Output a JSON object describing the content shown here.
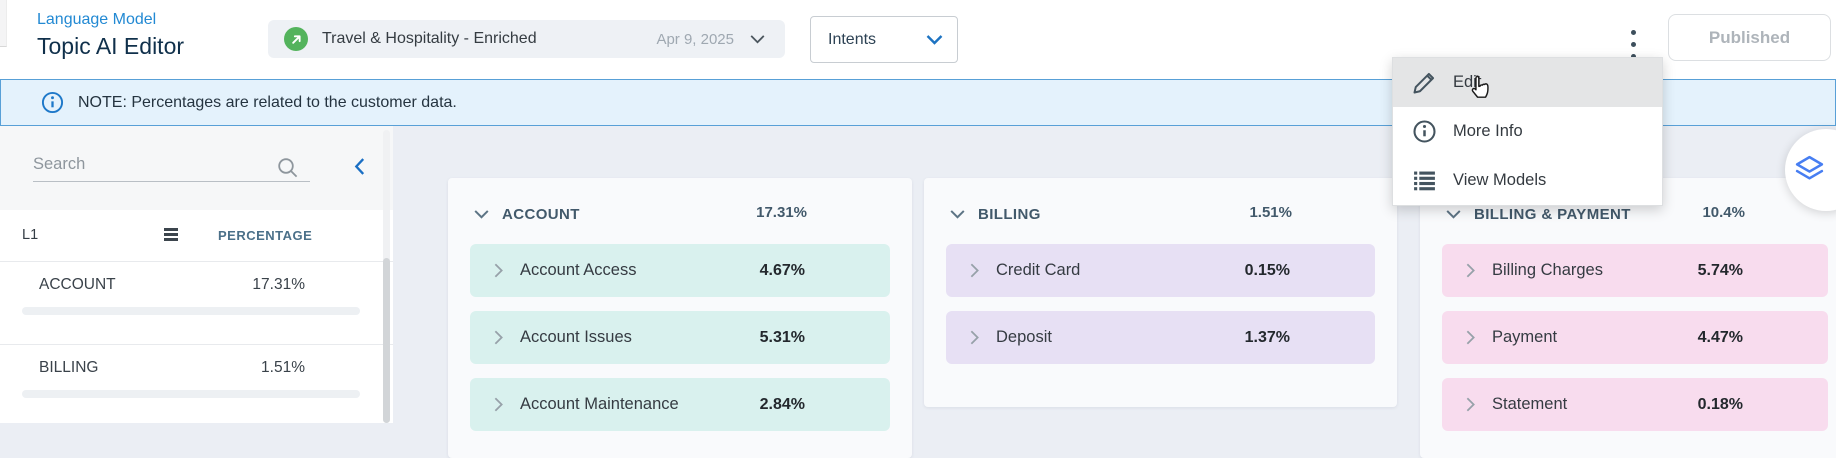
{
  "header": {
    "breadcrumb": "Language Model",
    "title": "Topic AI Editor",
    "model_selector": {
      "name": "Travel & Hospitality - Enriched",
      "date": "Apr 9, 2025",
      "status_color": "#53b35c"
    },
    "view_selector": {
      "value": "Intents"
    },
    "publish_button": {
      "label": "Published"
    }
  },
  "note_bar": {
    "text": "NOTE: Percentages are related to the customer data."
  },
  "context_menu": {
    "items": [
      {
        "label": "Edit"
      },
      {
        "label": "More Info"
      },
      {
        "label": "View Models"
      }
    ]
  },
  "sidebar": {
    "search": {
      "placeholder": "Search"
    },
    "columns": {
      "l1": "L1",
      "percentage": "PERCENTAGE"
    },
    "rows": [
      {
        "label": "ACCOUNT",
        "percentage": "17.31%",
        "value": 17.31,
        "bar_color": "#55959c"
      },
      {
        "label": "BILLING",
        "percentage": "1.51%",
        "value": 1.51,
        "bar_color": "#7b4fa0"
      }
    ]
  },
  "topics": [
    {
      "title": "ACCOUNT",
      "percentage": "17.31%",
      "item_bg": "#d9f1ee",
      "items": [
        {
          "label": "Account Access",
          "percentage": "4.67%"
        },
        {
          "label": "Account Issues",
          "percentage": "5.31%"
        },
        {
          "label": "Account Maintenance",
          "percentage": "2.84%"
        }
      ]
    },
    {
      "title": "BILLING",
      "percentage": "1.51%",
      "item_bg": "#e7e0f4",
      "items": [
        {
          "label": "Credit Card",
          "percentage": "0.15%"
        },
        {
          "label": "Deposit",
          "percentage": "1.37%"
        }
      ]
    },
    {
      "title": "BILLING & PAYMENT",
      "percentage": "10.4%",
      "item_bg": "#f8dcee",
      "items": [
        {
          "label": "Billing Charges",
          "percentage": "5.74%"
        },
        {
          "label": "Payment",
          "percentage": "4.47%"
        },
        {
          "label": "Statement",
          "percentage": "0.18%"
        }
      ]
    }
  ]
}
